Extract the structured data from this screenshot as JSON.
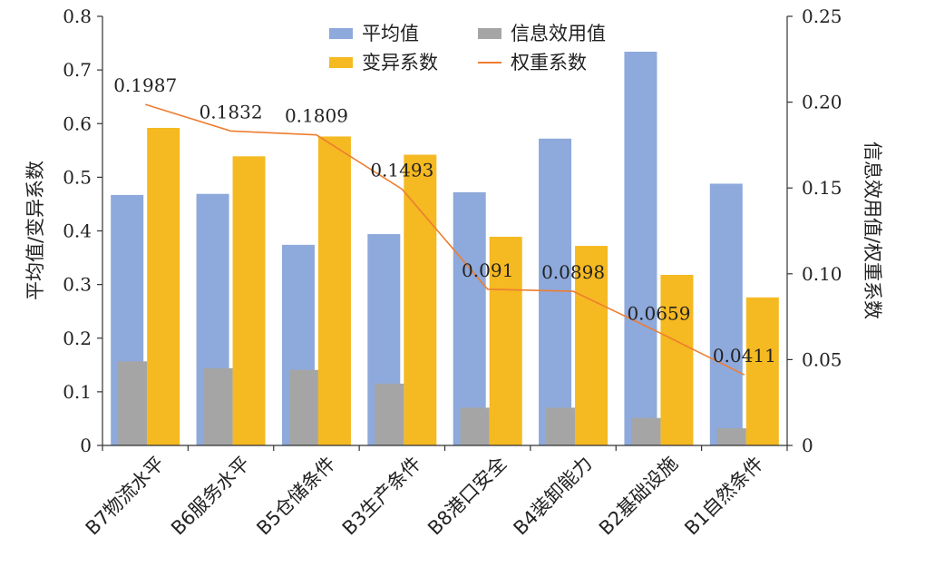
{
  "chart_data": {
    "type": "bar",
    "categories": [
      "B7物流水平",
      "B6服务水平",
      "B5仓储条件",
      "B3生产条件",
      "B8港口安全",
      "B4装卸能力",
      "B2基础设施",
      "B1自然条件"
    ],
    "left_axis": {
      "label": "平均值/变异系数",
      "ylim": [
        0,
        0.8
      ],
      "ticks": [
        "0",
        "0.1",
        "0.2",
        "0.3",
        "0.4",
        "0.5",
        "0.6",
        "0.7",
        "0.8"
      ]
    },
    "right_axis": {
      "label": "信息效用值/权重系数",
      "ylim": [
        0,
        0.25
      ],
      "ticks": [
        "0",
        "0.05",
        "0.10",
        "0.15",
        "0.20",
        "0.25"
      ]
    },
    "series": [
      {
        "name": "平均值",
        "kind": "bar",
        "axis": "left",
        "color": "#8EA9DB",
        "values": [
          0.467,
          0.469,
          0.374,
          0.394,
          0.472,
          0.572,
          0.734,
          0.488
        ]
      },
      {
        "name": "变异系数",
        "kind": "bar",
        "axis": "left",
        "color": "#F5B921",
        "values": [
          0.592,
          0.539,
          0.576,
          0.542,
          0.389,
          0.372,
          0.318,
          0.276
        ]
      },
      {
        "name": "信息效用值",
        "kind": "bar",
        "axis": "right",
        "color": "#A5A5A5",
        "values": [
          0.049,
          0.045,
          0.044,
          0.036,
          0.022,
          0.022,
          0.016,
          0.01
        ]
      },
      {
        "name": "权重系数",
        "kind": "line",
        "axis": "right",
        "color": "#ED7D31",
        "values": [
          0.1987,
          0.1832,
          0.1809,
          0.1493,
          0.091,
          0.0898,
          0.0659,
          0.0411
        ],
        "labels": [
          "0.1987",
          "0.1832",
          "0.1809",
          "0.1493",
          "0.091",
          "0.0898",
          "0.0659",
          "0.0411"
        ]
      }
    ],
    "legend": {
      "position": "top-center",
      "items": [
        {
          "name": "平均值",
          "color": "#8EA9DB",
          "type": "box"
        },
        {
          "name": "信息效用值",
          "color": "#A5A5A5",
          "type": "box"
        },
        {
          "name": "变异系数",
          "color": "#F5B921",
          "type": "box"
        },
        {
          "name": "权重系数",
          "color": "#ED7D31",
          "type": "line"
        }
      ]
    },
    "grid": false
  }
}
